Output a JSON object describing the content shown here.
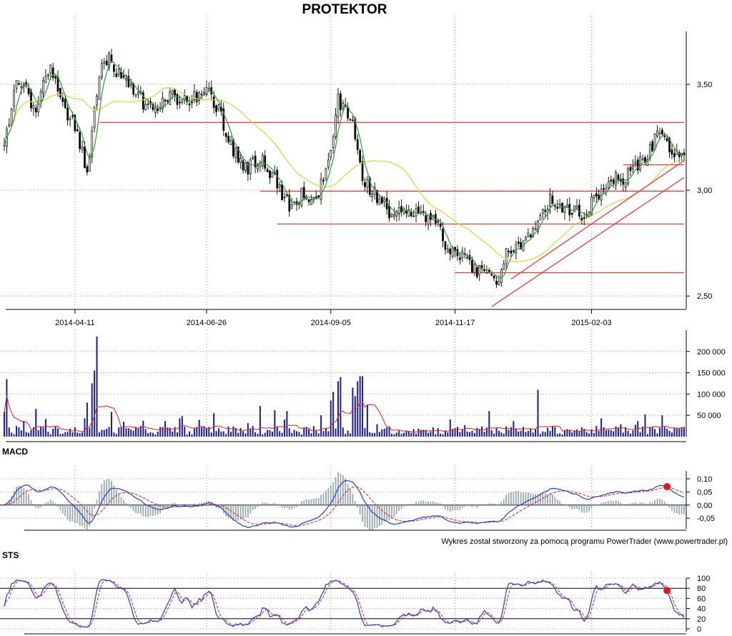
{
  "colors": {
    "candle": "#000000",
    "ma_short": "#2e9a2e",
    "ma_long": "#d8d84a",
    "levels": "#e04040",
    "volume_bars": "#1a1aa0",
    "volume_ma": "#e03030",
    "macd_line": "#2a3ac8",
    "macd_signal": "#e03030",
    "macd_hist": "#9aa8b0",
    "marker": "#e81818",
    "grid": "#9a9a9a"
  },
  "chart_data": [
    {
      "id": "price",
      "type": "candlestick",
      "title": "PROTEKTOR",
      "xlabel": "",
      "ylabel": "",
      "x_range": [
        "2014-03-03",
        "2015-03-27"
      ],
      "ylim": [
        2.44,
        3.75
      ],
      "x_ticks": [
        "2014-04-11",
        "2014-06-26",
        "2014-09-05",
        "2014-11-17",
        "2015-02-03"
      ],
      "y_ticks": [
        "2,50",
        "3,00",
        "3,50"
      ],
      "y_tick_values": [
        2.5,
        3.0,
        3.5
      ],
      "grid": true,
      "close_anchors": [
        [
          "2014-03-03",
          3.2
        ],
        [
          "2014-03-10",
          3.55
        ],
        [
          "2014-03-20",
          3.38
        ],
        [
          "2014-03-28",
          3.6
        ],
        [
          "2014-04-03",
          3.42
        ],
        [
          "2014-04-11",
          3.3
        ],
        [
          "2014-04-18",
          3.1
        ],
        [
          "2014-04-25",
          3.55
        ],
        [
          "2014-05-01",
          3.62
        ],
        [
          "2014-05-09",
          3.52
        ],
        [
          "2014-05-16",
          3.45
        ],
        [
          "2014-05-26",
          3.38
        ],
        [
          "2014-06-05",
          3.45
        ],
        [
          "2014-06-16",
          3.42
        ],
        [
          "2014-06-26",
          3.48
        ],
        [
          "2014-07-04",
          3.35
        ],
        [
          "2014-07-11",
          3.18
        ],
        [
          "2014-07-18",
          3.1
        ],
        [
          "2014-07-28",
          3.15
        ],
        [
          "2014-08-05",
          3.05
        ],
        [
          "2014-08-13",
          2.92
        ],
        [
          "2014-08-20",
          2.98
        ],
        [
          "2014-08-29",
          2.98
        ],
        [
          "2014-09-05",
          3.18
        ],
        [
          "2014-09-10",
          3.42
        ],
        [
          "2014-09-18",
          3.3
        ],
        [
          "2014-09-24",
          3.05
        ],
        [
          "2014-10-01",
          2.98
        ],
        [
          "2014-10-09",
          2.9
        ],
        [
          "2014-10-17",
          2.92
        ],
        [
          "2014-10-27",
          2.88
        ],
        [
          "2014-11-05",
          2.85
        ],
        [
          "2014-11-12",
          2.72
        ],
        [
          "2014-11-20",
          2.68
        ],
        [
          "2014-11-28",
          2.62
        ],
        [
          "2014-12-05",
          2.63
        ],
        [
          "2014-12-10",
          2.55
        ],
        [
          "2014-12-16",
          2.7
        ],
        [
          "2014-12-23",
          2.72
        ],
        [
          "2014-12-31",
          2.82
        ],
        [
          "2015-01-09",
          2.96
        ],
        [
          "2015-01-19",
          2.92
        ],
        [
          "2015-01-28",
          2.88
        ],
        [
          "2015-02-05",
          2.96
        ],
        [
          "2015-02-13",
          3.05
        ],
        [
          "2015-02-20",
          3.05
        ],
        [
          "2015-02-27",
          3.1
        ],
        [
          "2015-03-06",
          3.17
        ],
        [
          "2015-03-13",
          3.28
        ],
        [
          "2015-03-19",
          3.2
        ],
        [
          "2015-03-27",
          3.15
        ]
      ],
      "ma_short_period": 5,
      "ma_long_period": 30,
      "horizontal_levels": [
        {
          "y": 3.32,
          "from": "2014-04-25",
          "to": "2015-03-27"
        },
        {
          "y": 2.995,
          "from": "2014-07-28",
          "to": "2015-03-27"
        },
        {
          "y": 2.84,
          "from": "2014-08-06",
          "to": "2015-03-27"
        },
        {
          "y": 2.61,
          "from": "2014-11-17",
          "to": "2015-03-27"
        },
        {
          "y": 3.12,
          "from": "2015-02-20",
          "to": "2015-03-27"
        }
      ],
      "trend_lines": [
        {
          "from": [
            "2014-12-08",
            2.45
          ],
          "to": [
            "2015-03-27",
            3.06
          ]
        },
        {
          "from": [
            "2014-12-18",
            2.58
          ],
          "to": [
            "2015-03-27",
            3.14
          ]
        }
      ]
    },
    {
      "id": "volume",
      "type": "bar",
      "title": "",
      "ylim": [
        0,
        250000
      ],
      "y_ticks": [
        "50 000",
        "100 000",
        "150 000",
        "200 000"
      ],
      "y_tick_values": [
        50000,
        100000,
        150000,
        200000
      ],
      "spikes": [
        [
          "2014-03-04",
          135000
        ],
        [
          "2014-03-03",
          58000
        ],
        [
          "2014-03-20",
          65000
        ],
        [
          "2014-04-22",
          125000
        ],
        [
          "2014-04-24",
          235000
        ],
        [
          "2014-04-23",
          155000
        ],
        [
          "2014-04-18",
          80000
        ],
        [
          "2014-05-02",
          58000
        ],
        [
          "2014-06-12",
          48000
        ],
        [
          "2014-07-01",
          55000
        ],
        [
          "2014-07-28",
          72000
        ],
        [
          "2014-08-05",
          62000
        ],
        [
          "2014-08-12",
          60000
        ],
        [
          "2014-09-01",
          50000
        ],
        [
          "2014-09-08",
          105000
        ],
        [
          "2014-09-10",
          130000
        ],
        [
          "2014-09-11",
          140000
        ],
        [
          "2014-09-05",
          85000
        ],
        [
          "2014-09-18",
          115000
        ],
        [
          "2014-09-22",
          130000
        ],
        [
          "2014-09-23",
          142000
        ],
        [
          "2014-09-24",
          142000
        ],
        [
          "2014-09-19",
          95000
        ],
        [
          "2014-09-26",
          75000
        ],
        [
          "2015-01-02",
          110000
        ],
        [
          "2014-12-05",
          60000
        ],
        [
          "2015-03-05",
          52000
        ],
        [
          "2015-03-16",
          50000
        ]
      ],
      "ma_period": 10
    },
    {
      "id": "macd",
      "type": "line",
      "title": "MACD",
      "ylim": [
        -0.085,
        0.13
      ],
      "y_ticks": [
        "-0,05",
        "0,00",
        "0,05",
        "0,10"
      ],
      "y_tick_values": [
        -0.05,
        0.0,
        0.05,
        0.1
      ],
      "series": [
        {
          "role": "macd"
        },
        {
          "role": "signal"
        },
        {
          "role": "histogram"
        }
      ]
    },
    {
      "id": "sts",
      "type": "line",
      "title": "STS",
      "ylim": [
        0,
        100
      ],
      "y_ticks": [
        "0",
        "20",
        "40",
        "60",
        "80",
        "100"
      ],
      "y_tick_values": [
        0,
        20,
        40,
        60,
        80,
        100
      ],
      "reference_lines": [
        20,
        80
      ],
      "k_period": 14,
      "smoothing": 3
    }
  ],
  "credit": "Wykres został stworzony za pomocą programu PowerTrader (www.powertrader.pl)"
}
